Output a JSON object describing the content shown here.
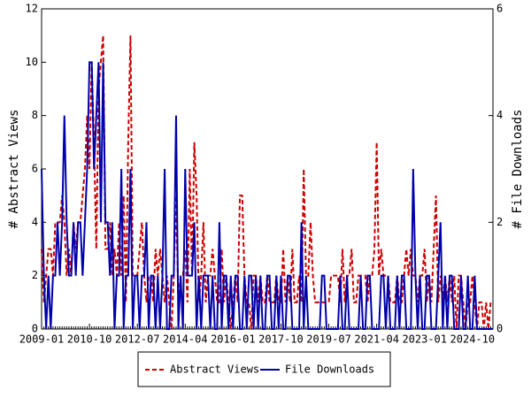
{
  "chart_data": {
    "type": "line",
    "y_label": "# Abstract Views",
    "y2_label": "# File Downloads",
    "x": [
      "2009-01",
      null,
      null,
      null,
      null,
      null,
      null,
      null,
      null,
      null,
      null,
      null,
      null,
      null,
      null,
      null,
      null,
      null,
      null,
      null,
      null,
      "2010-10",
      null,
      null,
      null,
      null,
      null,
      null,
      null,
      null,
      null,
      null,
      null,
      null,
      null,
      null,
      null,
      null,
      null,
      null,
      null,
      null,
      "2012-07",
      null,
      null,
      null,
      null,
      null,
      null,
      null,
      null,
      null,
      null,
      null,
      null,
      null,
      null,
      null,
      null,
      null,
      null,
      null,
      null,
      "2014-04",
      null,
      null,
      null,
      null,
      null,
      null,
      null,
      null,
      null,
      null,
      null,
      null,
      null,
      null,
      null,
      null,
      null,
      null,
      null,
      null,
      "2016-01",
      null,
      null,
      null,
      null,
      null,
      null,
      null,
      null,
      null,
      null,
      null,
      null,
      null,
      null,
      null,
      null,
      null,
      null,
      null,
      null,
      "2017-10",
      null,
      null,
      null,
      null,
      null,
      null,
      null,
      null,
      null,
      null,
      null,
      null,
      null,
      null,
      null,
      null,
      null,
      null,
      null,
      null,
      "2019-07",
      null,
      null,
      null,
      null,
      null,
      null,
      null,
      null,
      null,
      null,
      null,
      null,
      null,
      null,
      null,
      null,
      null,
      null,
      null,
      null,
      "2021-04",
      null,
      null,
      null,
      null,
      null,
      null,
      null,
      null,
      null,
      null,
      null,
      null,
      null,
      null,
      null,
      null,
      null,
      null,
      null,
      null,
      "2023-01",
      null,
      null,
      null,
      null,
      null,
      null,
      null,
      null,
      null,
      null,
      null,
      null,
      null,
      null,
      null,
      null,
      null,
      null,
      null,
      null,
      "2024-10",
      null,
      null,
      null,
      null,
      null,
      null,
      null,
      null,
      null
    ],
    "series": [
      {
        "name": "Abstract Views",
        "color": "#cc0000",
        "dashed": true,
        "values": [
          3,
          1,
          2,
          3,
          3,
          2,
          4,
          4,
          4,
          5,
          4,
          2,
          3,
          2,
          4,
          3,
          4,
          4,
          5,
          6,
          8,
          6,
          10,
          7,
          3,
          9,
          10,
          11,
          3,
          3,
          4,
          2,
          3,
          2,
          4,
          2,
          5,
          1,
          7,
          11,
          2,
          2,
          2,
          3,
          4,
          2,
          1,
          2,
          2,
          1,
          3,
          2,
          3,
          2,
          1,
          2,
          1,
          0,
          2,
          5,
          1,
          2,
          2,
          3,
          1,
          6,
          2,
          7,
          5,
          1,
          2,
          4,
          1,
          2,
          2,
          3,
          2,
          1,
          1,
          3,
          1,
          2,
          1,
          0,
          1,
          2,
          1,
          5,
          5,
          2,
          1,
          1,
          0,
          2,
          2,
          1,
          2,
          1,
          1,
          2,
          1,
          1,
          1,
          2,
          1,
          1,
          3,
          1,
          2,
          1,
          3,
          1,
          1,
          2,
          1,
          6,
          2,
          2,
          4,
          2,
          1,
          1,
          1,
          1,
          1,
          1,
          1,
          2,
          2,
          2,
          2,
          1,
          3,
          1,
          2,
          2,
          3,
          1,
          1,
          2,
          2,
          2,
          2,
          1,
          2,
          2,
          3,
          7,
          2,
          3,
          2,
          2,
          2,
          1,
          1,
          1,
          2,
          1,
          1,
          2,
          3,
          2,
          3,
          2,
          2,
          1,
          2,
          2,
          3,
          1,
          2,
          1,
          3,
          5,
          1,
          2,
          1,
          2,
          1,
          2,
          1,
          2,
          0,
          2,
          2,
          1,
          0,
          1,
          1,
          2,
          1,
          0,
          1,
          1,
          0,
          1,
          0,
          1,
          1
        ]
      },
      {
        "name": "File Downloads",
        "color": "#0000aa",
        "axis": "y2",
        "values": [
          3,
          1,
          0,
          1,
          0,
          1,
          1,
          2,
          1,
          2,
          4,
          2,
          1,
          1,
          2,
          1,
          2,
          2,
          1,
          2,
          3,
          5,
          5,
          3,
          4,
          5,
          2,
          5,
          2,
          2,
          1,
          2,
          0,
          1,
          1,
          3,
          0,
          1,
          1,
          3,
          0,
          1,
          1,
          0,
          1,
          1,
          2,
          0,
          1,
          1,
          0,
          1,
          0,
          1,
          3,
          0,
          0,
          1,
          1,
          4,
          0,
          1,
          0,
          3,
          1,
          1,
          1,
          2,
          0,
          1,
          0,
          1,
          1,
          1,
          0,
          1,
          0,
          0,
          2,
          0,
          1,
          1,
          0,
          1,
          0,
          1,
          1,
          0,
          0,
          1,
          0,
          1,
          1,
          0,
          1,
          0,
          1,
          0,
          0,
          1,
          1,
          0,
          0,
          1,
          0,
          1,
          0,
          0,
          1,
          1,
          0,
          0,
          0,
          0,
          2,
          0,
          1,
          0,
          0,
          0,
          0,
          0,
          0,
          1,
          1,
          0,
          0,
          0,
          0,
          0,
          0,
          1,
          0,
          0,
          1,
          0,
          0,
          0,
          0,
          0,
          1,
          0,
          0,
          1,
          1,
          0,
          0,
          0,
          0,
          1,
          1,
          0,
          1,
          0,
          0,
          0,
          1,
          0,
          1,
          1,
          0,
          0,
          0,
          3,
          1,
          0,
          1,
          0,
          0,
          1,
          1,
          0,
          0,
          0,
          1,
          2,
          0,
          1,
          0,
          1,
          1,
          0,
          0,
          0,
          1,
          0,
          0,
          1,
          0,
          0,
          1,
          0,
          0,
          0,
          0,
          0,
          0,
          0,
          0
        ]
      }
    ],
    "ylim": [
      0,
      12
    ],
    "yticks": [
      0,
      2,
      4,
      6,
      8,
      10,
      12
    ],
    "y2lim": [
      0,
      6
    ],
    "y2ticks": [
      0,
      2,
      4,
      6
    ],
    "legend": "bottom"
  }
}
